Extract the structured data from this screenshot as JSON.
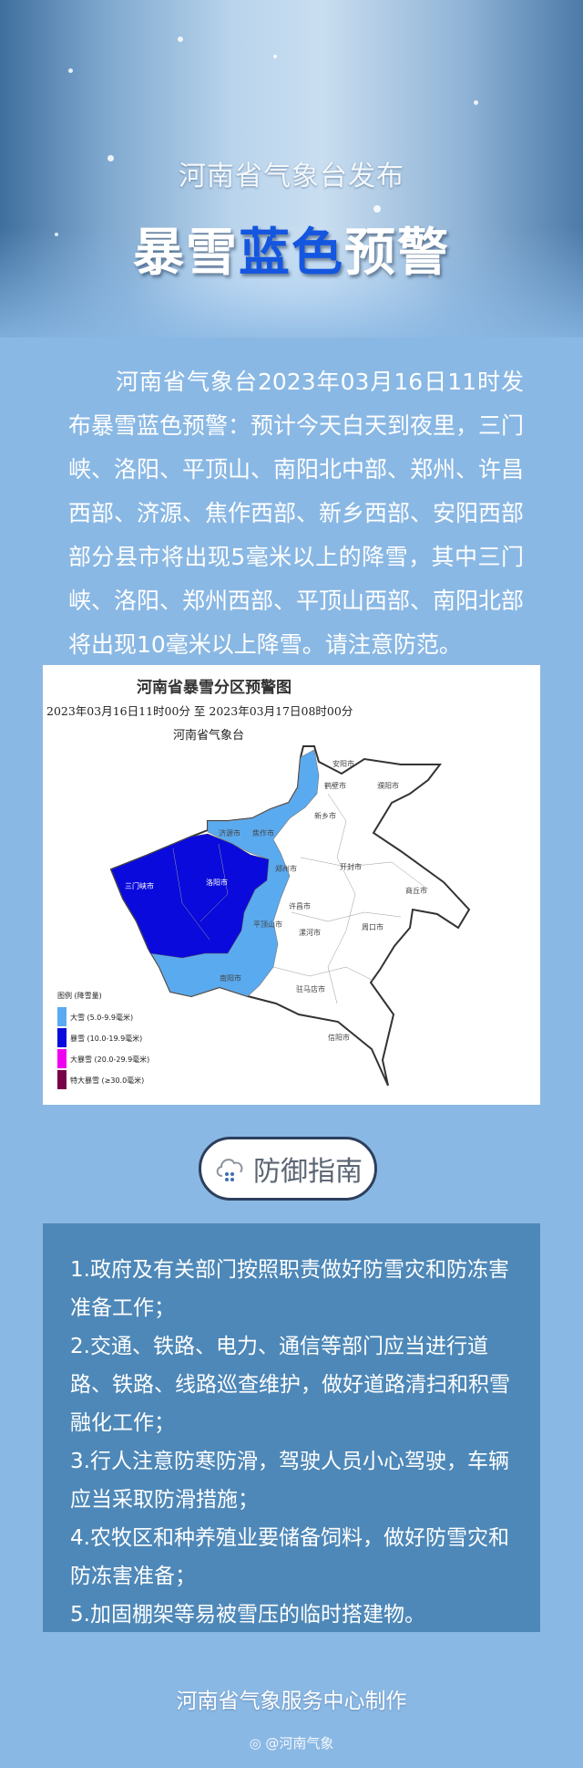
{
  "header": {
    "subtitle": "河南省气象台发布",
    "title_part1": "暴雪",
    "title_highlight": "蓝色",
    "title_part2": "预警",
    "highlight_color": "#1456e0"
  },
  "intro": "河南省气象台2023年03月16日11时发布暴雪蓝色预警：预计今天白天到夜里，三门峡、洛阳、平顶山、南阳北中部、郑州、许昌西部、济源、焦作西部、新乡西部、安阳西部部分县市将出现5毫米以上的降雪，其中三门峡、洛阳、郑州西部、平顶山西部、南阳北部将出现10毫米以上降雪。请注意防范。",
  "map": {
    "title": "河南省暴雪分区预警图",
    "period": "2023年03月16日11时00分 至 2023年03月17日08时00分",
    "issuer": "河南省气象台",
    "cities": [
      "安阳市",
      "鹤壁市",
      "濮阳市",
      "新乡市",
      "济源市",
      "焦作市",
      "郑州市",
      "开封市",
      "商丘市",
      "三门峡市",
      "洛阳市",
      "许昌市",
      "平顶山市",
      "漯河市",
      "周口市",
      "南阳市",
      "驻马店市",
      "信阳市"
    ],
    "legend_title": "图例 (降雪量)",
    "legend": [
      {
        "label": "大雪 (5.0-9.9毫米)",
        "color": "#5aaaf0"
      },
      {
        "label": "暴雪 (10.0-19.9毫米)",
        "color": "#0a0adc"
      },
      {
        "label": "大暴雪 (20.0-29.9毫米)",
        "color": "#f000f0"
      },
      {
        "label": "特大暴雪 (≥30.0毫米)",
        "color": "#780046"
      }
    ]
  },
  "guide": {
    "label": "防御指南",
    "icon": "snow-cloud-icon"
  },
  "tips": [
    "1.政府及有关部门按照职责做好防雪灾和防冻害准备工作；",
    "2.交通、铁路、电力、通信等部门应当进行道路、铁路、线路巡查维护，做好道路清扫和积雪融化工作；",
    "3.行人注意防寒防滑，驾驶人员小心驾驶，车辆应当采取防滑措施；",
    "4.农牧区和种养殖业要储备饲料，做好防雪灾和防冻害准备；",
    "5.加固棚架等易被雪压的临时搭建物。"
  ],
  "footer": "河南省气象服务中心制作",
  "watermark": "@河南气象"
}
